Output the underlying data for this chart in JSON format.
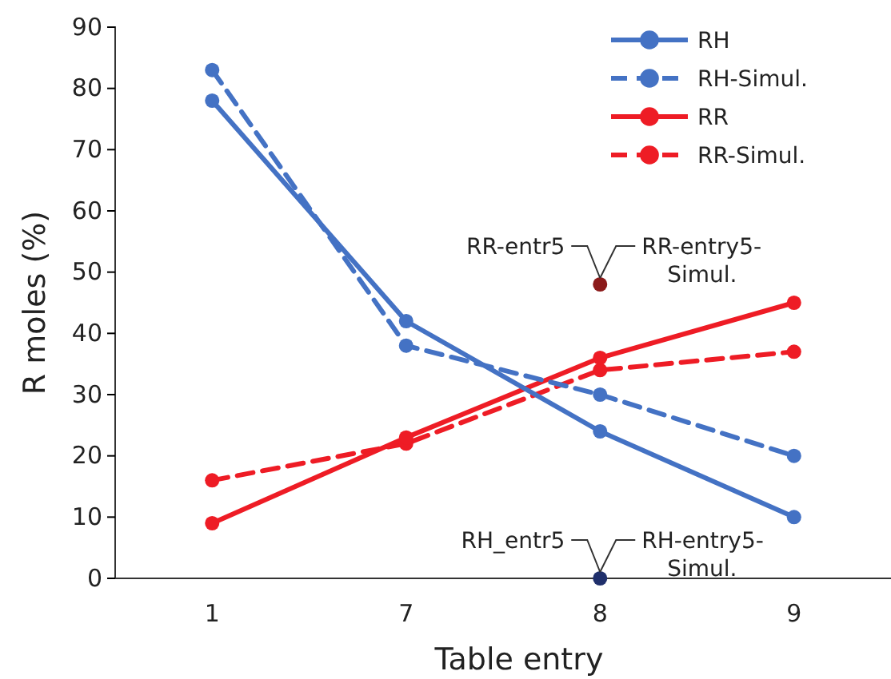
{
  "chart_data": {
    "type": "line",
    "xlabel": "Table entry",
    "ylabel": "R moles (%)",
    "categories": [
      "1",
      "7",
      "8",
      "9"
    ],
    "ylim": [
      0,
      90
    ],
    "yticks": [
      0,
      10,
      20,
      30,
      40,
      50,
      60,
      70,
      80,
      90
    ],
    "grid": false,
    "legend": "top right",
    "marker": "circle",
    "series": [
      {
        "name": "RH",
        "color": "#4472c4",
        "values": [
          78,
          42,
          24,
          10
        ],
        "line_style": "solid"
      },
      {
        "name": "RH-Simul.",
        "color": "#4472c4",
        "values": [
          83,
          38,
          30,
          20
        ],
        "line_style": "dashed"
      },
      {
        "name": "RR",
        "color": "#ee1c25",
        "values": [
          9,
          23,
          36,
          45
        ],
        "line_style": "solid"
      },
      {
        "name": "RR-Simul.",
        "color": "#ee1c25",
        "values": [
          16,
          22,
          34,
          37
        ],
        "line_style": "dashed"
      },
      {
        "type": "scatter",
        "color": "#8b1a1a",
        "x": [
          "8"
        ],
        "values": [
          48
        ]
      },
      {
        "type": "scatter",
        "color": "#1f2f6b",
        "x": [
          "8"
        ],
        "values": [
          0
        ]
      }
    ],
    "annotations": [
      {
        "text": "RR-entr5",
        "x": "8",
        "y": 48
      },
      {
        "text": "RR-entry5-Simul.",
        "x": "8",
        "y": 48
      },
      {
        "text": "RH_entr5",
        "x": "8",
        "y": 0
      },
      {
        "text": "RH-entry5-Simul.",
        "x": "8",
        "y": 0
      }
    ]
  }
}
